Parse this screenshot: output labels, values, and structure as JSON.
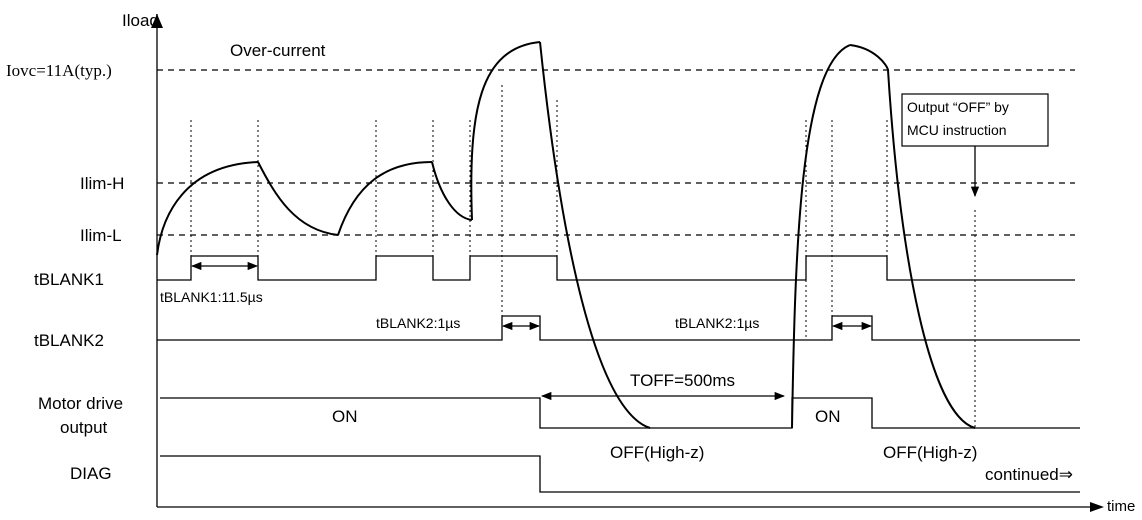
{
  "axes": {
    "y_label": "Iload",
    "x_label": "time"
  },
  "levels": {
    "over_current": "Over-current",
    "iovc": "Iovc=11A(typ.)",
    "ilim_h": "Ilim-H",
    "ilim_l": "Ilim-L"
  },
  "signals": {
    "tblank1": "tBLANK1",
    "tblank2": "tBLANK2",
    "motor_line1": "Motor drive",
    "motor_line2": "output",
    "diag": "DIAG"
  },
  "annotations": {
    "tblank1_duration": "tBLANK1:11.5µs",
    "tblank2_duration_a": "tBLANK2:1µs",
    "tblank2_duration_b": "tBLANK2:1µs",
    "toff": "TOFF=500ms",
    "on_a": "ON",
    "on_b": "ON",
    "off_a": "OFF(High-z)",
    "off_b": "OFF(High-z)",
    "callout_line1": "Output “OFF” by",
    "callout_line2": "MCU instruction",
    "continued": "continued⇒"
  }
}
